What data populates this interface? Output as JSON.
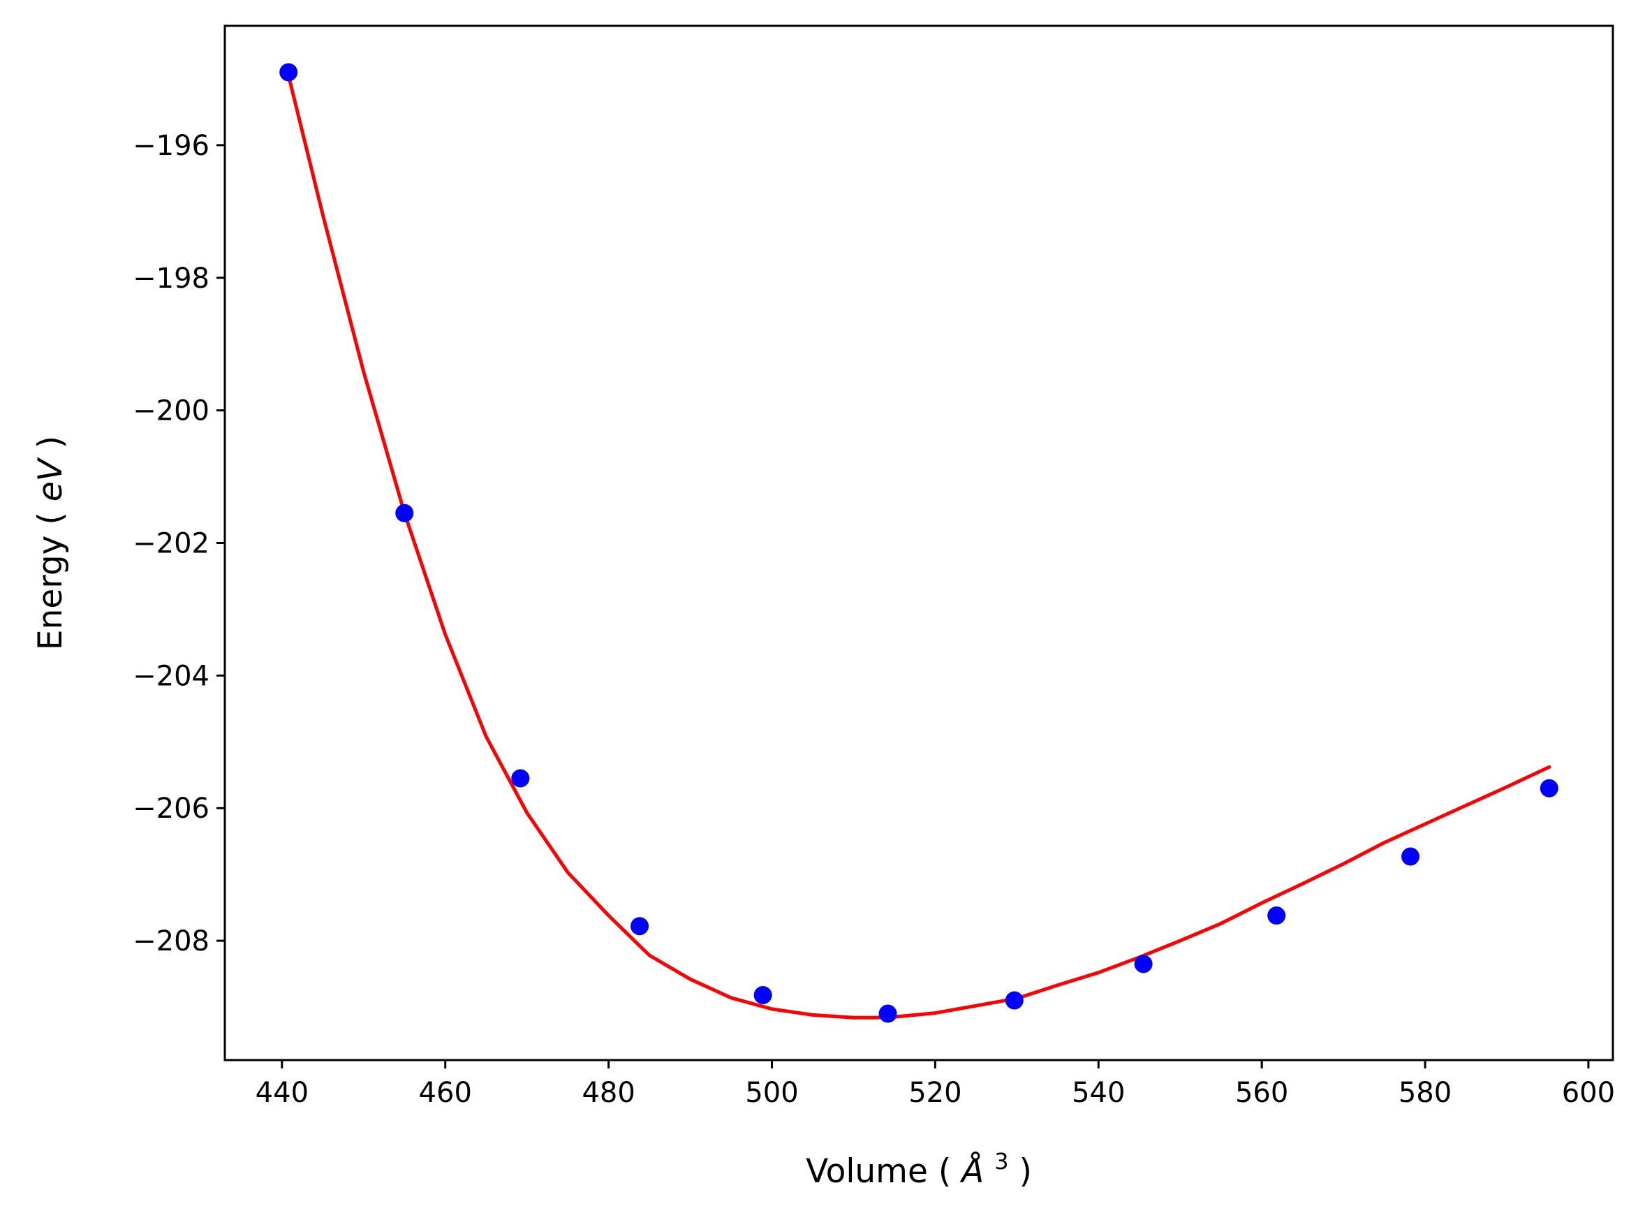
{
  "chart_data": {
    "type": "scatter",
    "title": "",
    "xlabel": "Volume",
    "xlabel_unit": "Å",
    "xlabel_unit_exponent": "3",
    "ylabel": "Energy",
    "ylabel_unit": "eV",
    "xlim": [
      433,
      603
    ],
    "ylim": [
      -209.8,
      -194.2
    ],
    "x_ticks": [
      440,
      460,
      480,
      500,
      520,
      540,
      560,
      580,
      600
    ],
    "x_tick_labels": [
      "440",
      "460",
      "480",
      "500",
      "520",
      "540",
      "560",
      "580",
      "600"
    ],
    "y_ticks": [
      -196,
      -198,
      -200,
      -202,
      -204,
      -206,
      -208
    ],
    "y_tick_labels": [
      "−196",
      "−198",
      "−200",
      "−202",
      "−204",
      "−206",
      "−208"
    ],
    "grid": false,
    "legend": null,
    "series": [
      {
        "kind": "points",
        "color": "#0000ff",
        "x": [
          440.8,
          455.0,
          469.2,
          483.8,
          498.9,
          514.2,
          529.7,
          545.5,
          561.8,
          578.2,
          595.2
        ],
        "y": [
          -194.9,
          -201.55,
          -205.55,
          -207.78,
          -208.82,
          -209.1,
          -208.9,
          -208.35,
          -207.62,
          -206.73,
          -205.7
        ]
      },
      {
        "kind": "fit-curve",
        "color": "#ff0000",
        "x": [
          440.8,
          445,
          450,
          455,
          460,
          465,
          470,
          475,
          480,
          485,
          490,
          495,
          500,
          505,
          510,
          512.5,
          515,
          520,
          525,
          530,
          535,
          540,
          545,
          550,
          555,
          560,
          565,
          570,
          575,
          580,
          585,
          590,
          595.2
        ],
        "y": [
          -194.95,
          -197.05,
          -199.42,
          -201.55,
          -203.38,
          -204.92,
          -206.07,
          -206.97,
          -207.62,
          -208.22,
          -208.58,
          -208.86,
          -209.03,
          -209.12,
          -209.16,
          -209.16,
          -209.15,
          -209.09,
          -208.98,
          -208.87,
          -208.67,
          -208.48,
          -208.25,
          -208.0,
          -207.74,
          -207.43,
          -207.14,
          -206.84,
          -206.52,
          -206.24,
          -205.96,
          -205.68,
          -205.38
        ]
      }
    ]
  }
}
